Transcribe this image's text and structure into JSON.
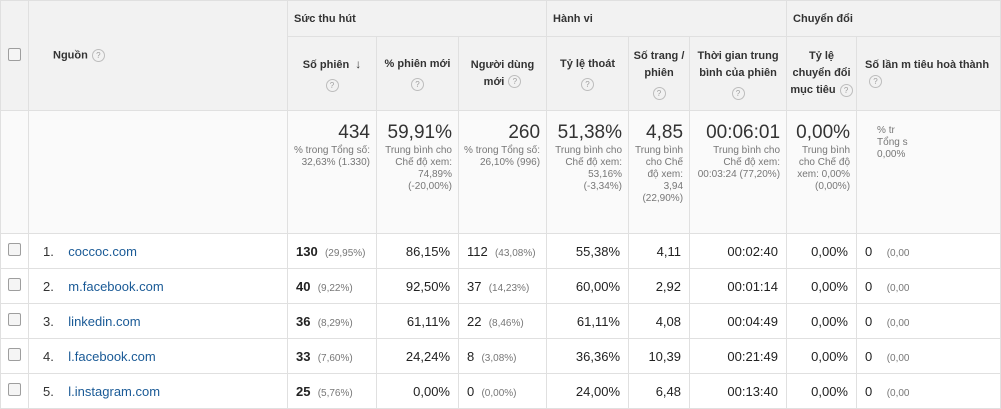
{
  "groups": {
    "acquisition": "Sức thu hút",
    "behavior": "Hành vi",
    "conversions": "Chuyển đổi"
  },
  "source_label": "Nguồn",
  "help_glyph": "?",
  "sort_glyph": "↓",
  "columns": {
    "sessions": "Số phiên",
    "new_sessions_pct": "% phiên mới",
    "new_users": "Người dùng mới",
    "bounce_rate": "Tỷ lệ thoát",
    "pages_per_session": "Số trang / phiên",
    "avg_duration": "Thời gian trung bình của phiên",
    "goal_rate": "Tỷ lệ chuyển đổi mục tiêu",
    "goal_completions": "Số lần m tiêu hoà thành"
  },
  "totals": {
    "sessions": {
      "value": "434",
      "sub": "% trong Tổng số: 32,63% (1.330)"
    },
    "new_sessions_pct": {
      "value": "59,91%",
      "sub": "Trung bình cho Chế độ xem: 74,89% (-20,00%)"
    },
    "new_users": {
      "value": "260",
      "sub": "% trong Tổng số: 26,10% (996)"
    },
    "bounce_rate": {
      "value": "51,38%",
      "sub": "Trung bình cho Chế độ xem: 53,16% (-3,34%)"
    },
    "pages_per_session": {
      "value": "4,85",
      "sub": "Trung bình cho Chế độ xem: 3,94 (22,90%)"
    },
    "avg_duration": {
      "value": "00:06:01",
      "sub": "Trung bình cho Chế độ xem: 00:03:24 (77,20%)"
    },
    "goal_rate": {
      "value": "0,00%",
      "sub": "Trung bình cho Chế độ xem: 0,00% (0,00%)"
    },
    "goal_completions": {
      "value": "",
      "sub": "% tr Tổng s 0,00%"
    }
  },
  "rows": [
    {
      "index": "1.",
      "source": "coccoc.com",
      "sessions": "130",
      "sessions_pct": "(29,95%)",
      "new_sessions_pct": "86,15%",
      "new_users": "112",
      "new_users_pct": "(43,08%)",
      "bounce_rate": "55,38%",
      "pages_per_session": "4,11",
      "avg_duration": "00:02:40",
      "goal_rate": "0,00%",
      "goal_completions": "0",
      "goal_completions_pct": "(0,00"
    },
    {
      "index": "2.",
      "source": "m.facebook.com",
      "sessions": "40",
      "sessions_pct": "(9,22%)",
      "new_sessions_pct": "92,50%",
      "new_users": "37",
      "new_users_pct": "(14,23%)",
      "bounce_rate": "60,00%",
      "pages_per_session": "2,92",
      "avg_duration": "00:01:14",
      "goal_rate": "0,00%",
      "goal_completions": "0",
      "goal_completions_pct": "(0,00"
    },
    {
      "index": "3.",
      "source": "linkedin.com",
      "sessions": "36",
      "sessions_pct": "(8,29%)",
      "new_sessions_pct": "61,11%",
      "new_users": "22",
      "new_users_pct": "(8,46%)",
      "bounce_rate": "61,11%",
      "pages_per_session": "4,08",
      "avg_duration": "00:04:49",
      "goal_rate": "0,00%",
      "goal_completions": "0",
      "goal_completions_pct": "(0,00"
    },
    {
      "index": "4.",
      "source": "l.facebook.com",
      "sessions": "33",
      "sessions_pct": "(7,60%)",
      "new_sessions_pct": "24,24%",
      "new_users": "8",
      "new_users_pct": "(3,08%)",
      "bounce_rate": "36,36%",
      "pages_per_session": "10,39",
      "avg_duration": "00:21:49",
      "goal_rate": "0,00%",
      "goal_completions": "0",
      "goal_completions_pct": "(0,00"
    },
    {
      "index": "5.",
      "source": "l.instagram.com",
      "sessions": "25",
      "sessions_pct": "(5,76%)",
      "new_sessions_pct": "0,00%",
      "new_users": "0",
      "new_users_pct": "(0,00%)",
      "bounce_rate": "24,00%",
      "pages_per_session": "6,48",
      "avg_duration": "00:13:40",
      "goal_rate": "0,00%",
      "goal_completions": "0",
      "goal_completions_pct": "(0,00"
    }
  ],
  "colors": {
    "link": "#1a5a96",
    "header_bg": "#f2f2f2",
    "border": "#e0e0e0"
  }
}
